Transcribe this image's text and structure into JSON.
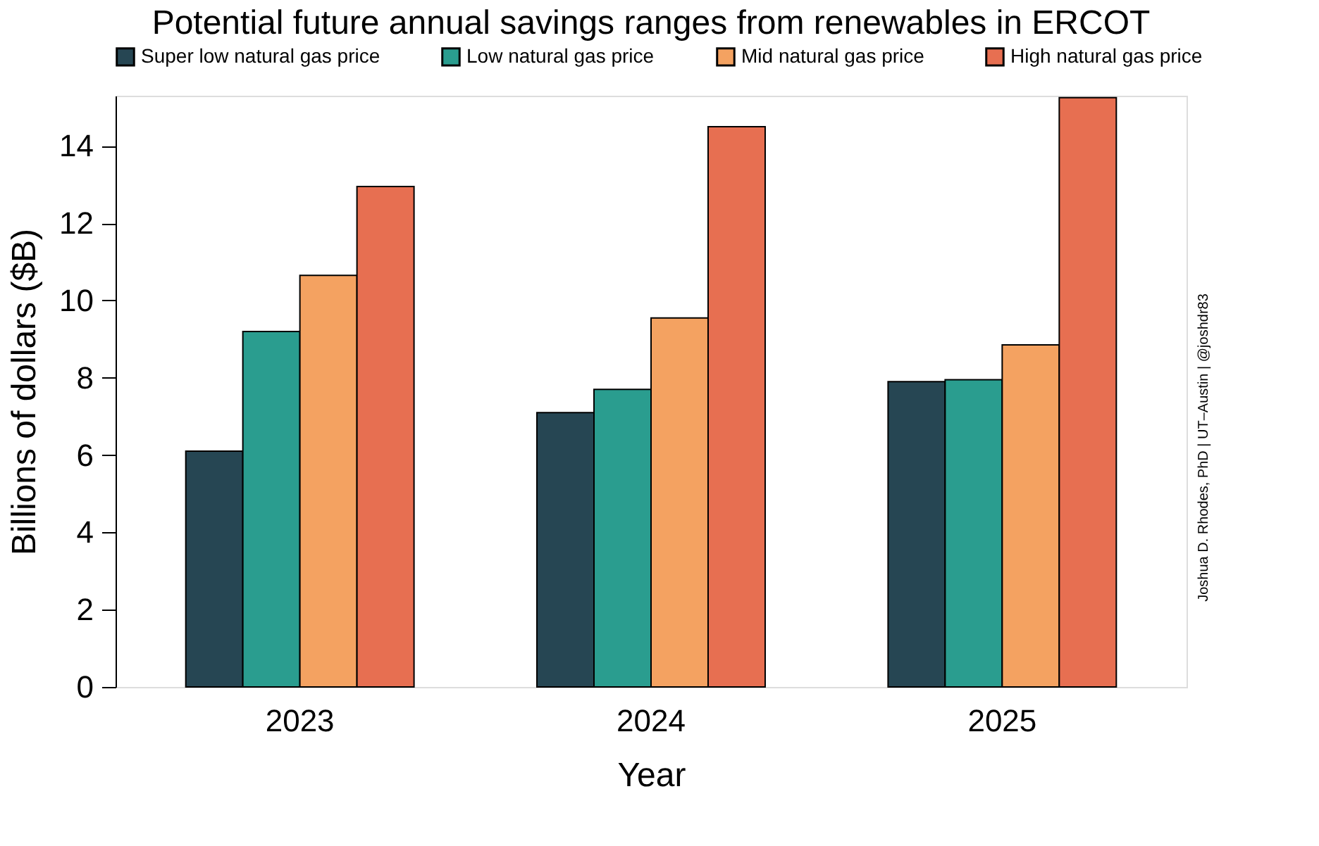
{
  "chart_data": {
    "type": "bar",
    "title": "Potential future annual savings ranges from renewables in ERCOT",
    "xlabel": "Year",
    "ylabel": "Billions of dollars ($B)",
    "categories": [
      "2023",
      "2024",
      "2025"
    ],
    "series": [
      {
        "name": "Super low natural gas price",
        "color": "#264653",
        "values": [
          6.1,
          7.1,
          7.9
        ]
      },
      {
        "name": "Low natural gas price",
        "color": "#2a9d8f",
        "values": [
          9.2,
          7.7,
          7.95
        ]
      },
      {
        "name": "Mid natural gas price",
        "color": "#f4a261",
        "values": [
          10.65,
          9.55,
          8.85
        ]
      },
      {
        "name": "High natural gas price",
        "color": "#e76f51",
        "values": [
          12.95,
          14.5,
          15.25
        ]
      }
    ],
    "ylim": [
      0,
      15.3
    ],
    "yticks": [
      0,
      2,
      4,
      6,
      8,
      10,
      12,
      14
    ],
    "grid": false,
    "legend": "top",
    "annotations": [
      "Joshua D. Rhodes, PhD | UT–Austin | @joshdr83"
    ]
  }
}
